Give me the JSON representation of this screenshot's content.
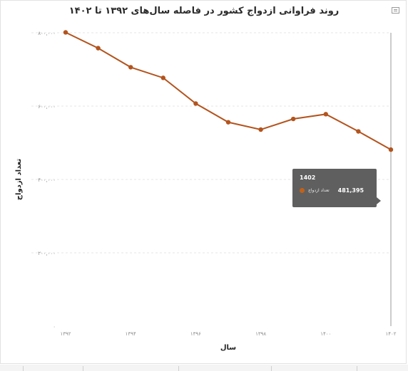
{
  "chart_data": {
    "type": "line",
    "title": "روند فراوانی ازدواج کشور در فاصله سال‌های ۱۳۹۲ تا ۱۴۰۲",
    "xlabel": "سال",
    "ylabel": "تعداد ازدواج",
    "x": [
      1392,
      1393,
      1394,
      1395,
      1396,
      1397,
      1398,
      1399,
      1400,
      1401,
      1402
    ],
    "x_tick_labels": [
      "۱۳۹۲",
      "۱۳۹۴",
      "۱۳۹۶",
      "۱۳۹۸",
      "۱۴۰۰",
      "۱۴۰۲"
    ],
    "x_tick_values": [
      1392,
      1394,
      1396,
      1398,
      1400,
      1402
    ],
    "y_tick_labels": [
      "۰",
      "۲۰۰,۰۰۰",
      "۴۰۰,۰۰۰",
      "۶۰۰,۰۰۰",
      "۸۰۰,۰۰۰"
    ],
    "y_tick_values": [
      0,
      200000,
      400000,
      600000,
      800000
    ],
    "ylim": [
      0,
      800000
    ],
    "grid": true,
    "series": [
      {
        "name": "تعداد ازدواج",
        "color": "#b3541e",
        "values": [
          801000,
          758000,
          706000,
          677000,
          607000,
          556000,
          536000,
          565000,
          578000,
          531000,
          481395
        ]
      }
    ],
    "tooltip": {
      "year": "1402",
      "label": "تعداد ازدواج",
      "value": "481,395"
    }
  }
}
